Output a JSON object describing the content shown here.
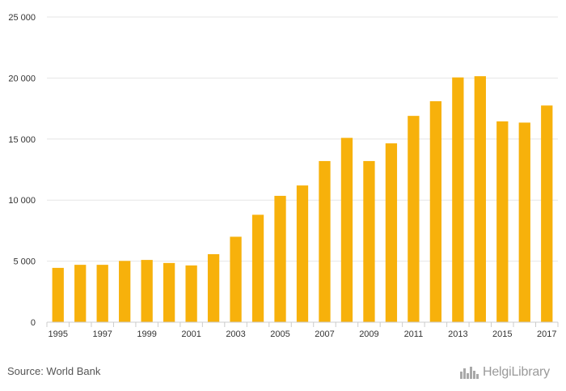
{
  "chart_data": {
    "type": "bar",
    "categories": [
      "1995",
      "1996",
      "1997",
      "1998",
      "1999",
      "2000",
      "2001",
      "2002",
      "2003",
      "2004",
      "2005",
      "2006",
      "2007",
      "2008",
      "2009",
      "2010",
      "2011",
      "2012",
      "2013",
      "2014",
      "2015",
      "2016",
      "2017"
    ],
    "values": [
      4450,
      4700,
      4700,
      5020,
      5100,
      4850,
      4650,
      5570,
      7000,
      8800,
      10350,
      11200,
      13200,
      15100,
      13200,
      14650,
      16900,
      18100,
      20050,
      20150,
      16450,
      16350,
      17750
    ],
    "x_tick_labels": [
      "1995",
      "1997",
      "1999",
      "2001",
      "2003",
      "2005",
      "2007",
      "2009",
      "2011",
      "2013",
      "2015",
      "2017"
    ],
    "y_ticks": [
      0,
      5000,
      10000,
      15000,
      20000,
      25000
    ],
    "y_tick_labels": [
      "0",
      "5 000",
      "10 000",
      "15 000",
      "20 000",
      "25 000"
    ],
    "ylim": [
      0,
      25000
    ],
    "bar_color": "#F7B10B",
    "grid": true
  },
  "footer": {
    "source": "Source: World Bank",
    "logo_text": "HelgiLibrary",
    "logo_icon": "library-skyline-icon"
  }
}
